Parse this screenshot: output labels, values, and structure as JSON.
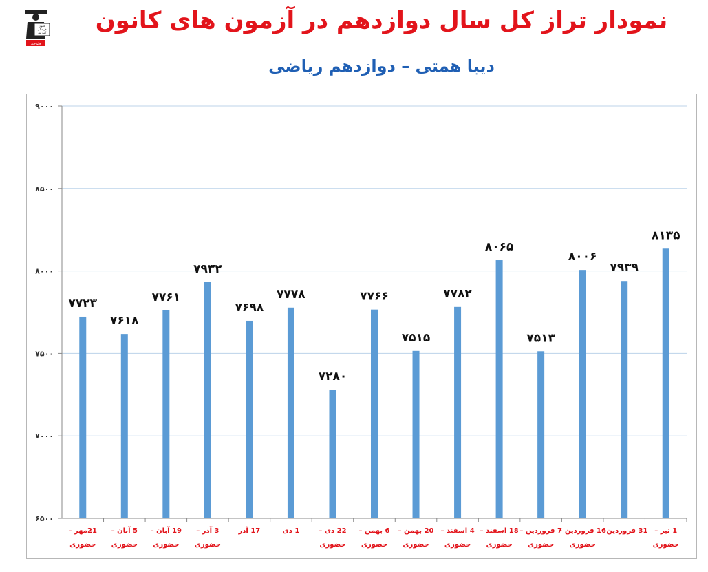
{
  "title": "نمودار تراز کل سال دوازدهم در آزمون های کانون",
  "subtitle": "دیبا همتی – دوازدهم ریاضی",
  "logo": {
    "icon": "graduate-logo-icon",
    "lines": [
      "کانون",
      "فرهنگی",
      "آموزش"
    ],
    "badge": "قلم‌چی"
  },
  "colors": {
    "title": "#e2141b",
    "subtitle": "#1f5fb4",
    "bar": "#5b9bd5",
    "category": "#e2141b",
    "grid": "#bcd3ea"
  },
  "chart_data": {
    "type": "bar",
    "ylim": [
      6500,
      9000
    ],
    "yticks": [
      "۶۵۰۰",
      "۷۰۰۰",
      "۷۵۰۰",
      "۸۰۰۰",
      "۸۵۰۰",
      "۹۰۰۰"
    ],
    "ytick_values": [
      6500,
      7000,
      7500,
      8000,
      8500,
      9000
    ],
    "grid": true,
    "legend": "none",
    "categories": [
      [
        "21مهر –",
        "حضوری"
      ],
      [
        "5 آبان –",
        "حضوری"
      ],
      [
        "19 آبان –",
        "حضوری"
      ],
      [
        "3 آذر –",
        "حضوری"
      ],
      [
        "17 آذر",
        ""
      ],
      [
        "1 دی",
        ""
      ],
      [
        "22 دی –",
        "حضوری"
      ],
      [
        "6 بهمن –",
        "حضوری"
      ],
      [
        "20 بهمن –",
        "حضوری"
      ],
      [
        "4 اسفند –",
        "حضوری"
      ],
      [
        "18 اسفند –",
        "حضوری"
      ],
      [
        "7 فروردین –",
        "حضوری"
      ],
      [
        "16 فروردین –",
        "حضوری"
      ],
      [
        "31 فروردین –",
        ""
      ],
      [
        "1 تیر –",
        "حضوری"
      ]
    ],
    "values": [
      7723,
      7618,
      7761,
      7932,
      7698,
      7778,
      7280,
      7766,
      7515,
      7782,
      8065,
      7513,
      8006,
      7939,
      8135
    ],
    "value_labels": [
      "۷۷۲۳",
      "۷۶۱۸",
      "۷۷۶۱",
      "۷۹۳۲",
      "۷۶۹۸",
      "۷۷۷۸",
      "۷۲۸۰",
      "۷۷۶۶",
      "۷۵۱۵",
      "۷۷۸۲",
      "۸۰۶۵",
      "۷۵۱۳",
      "۸۰۰۶",
      "۷۹۳۹",
      "۸۱۳۵"
    ]
  }
}
